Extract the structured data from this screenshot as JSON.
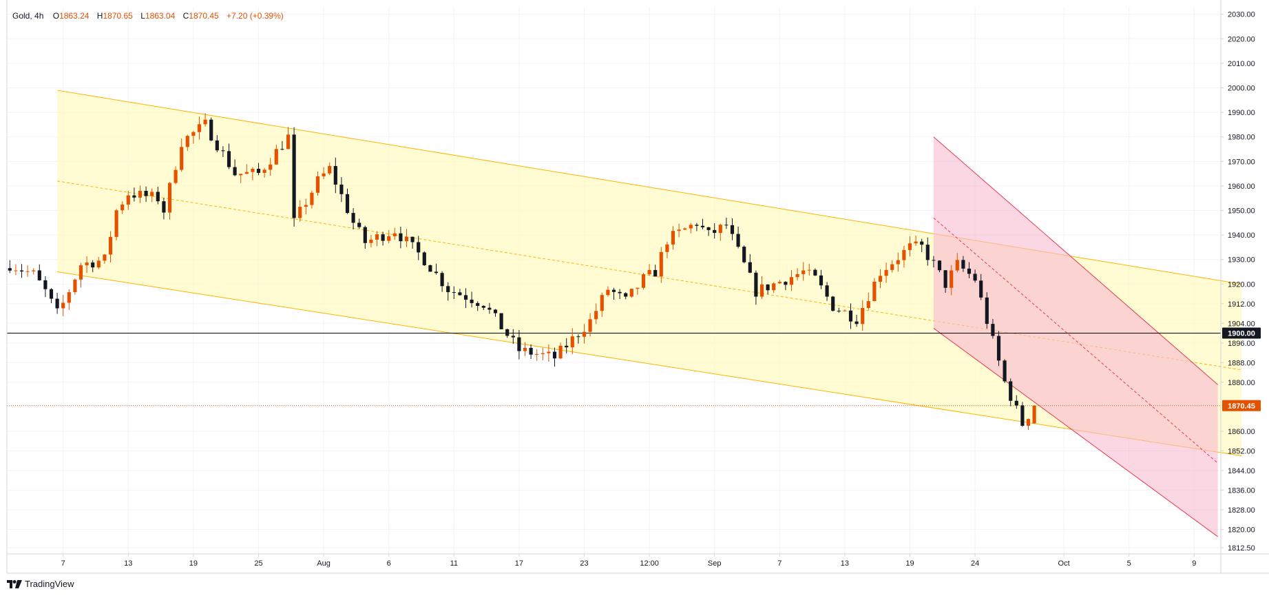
{
  "header": {
    "symbol": "Gold, 4h",
    "open_label": "O",
    "open": "1863.24",
    "high_label": "H",
    "high": "1870.65",
    "low_label": "L",
    "low": "1863.04",
    "close_label": "C",
    "close": "1870.45",
    "change": "+7.20 (+0.39%)"
  },
  "footer": {
    "brand": "TradingView",
    "logo_icon": "tradingview-logo-icon"
  },
  "colors": {
    "bull_candle": "#e65100",
    "bear_candle": "#131722",
    "channel_fill": "#fff9c4",
    "channel_line": "#ffb300",
    "down_channel_fill": "#f8bbd0",
    "down_channel_line": "#e53950",
    "price_label_bg": "#e65100",
    "level_line": "#131722"
  },
  "chart_data": {
    "type": "candlestick",
    "title": "Gold, 4h",
    "timeframe": "4h",
    "ylim": [
      1810,
      2033
    ],
    "y_ticks": [
      1812.5,
      1820.0,
      1828.0,
      1836.0,
      1844.0,
      1852.0,
      1860.0,
      1880.0,
      1888.0,
      1896.0,
      1904.0,
      1912.0,
      1920.0,
      1930.0,
      1940.0,
      1950.0,
      1960.0,
      1970.0,
      1980.0,
      1990.0,
      2000.0,
      2010.0,
      2020.0,
      2030.0
    ],
    "y_tick_labels": [
      "1812.50",
      "1820.00",
      "1828.00",
      "1836.00",
      "1844.00",
      "1852.00",
      "1860.00",
      "1880.00",
      "1888.00",
      "1896.00",
      "1904.00",
      "1912.00",
      "1920.00",
      "1930.00",
      "1940.00",
      "1950.00",
      "1960.00",
      "1970.00",
      "1980.00",
      "1990.00",
      "2000.00",
      "2010.00",
      "2020.00",
      "2030.00"
    ],
    "x_ticks": [
      "7",
      "13",
      "19",
      "25",
      "Aug",
      "6",
      "11",
      "17",
      "23",
      "12:00",
      "Sep",
      "7",
      "13",
      "19",
      "24",
      "Oct",
      "5",
      "9"
    ],
    "x_tick_bars": [
      9,
      20,
      31,
      42,
      53,
      64,
      75,
      86,
      97,
      108,
      119,
      130,
      141,
      152,
      163,
      178,
      189,
      200
    ],
    "total_bars": 205,
    "last_bar_index": 173,
    "horizontal_level": {
      "value": 1900.0,
      "label": "1900.00"
    },
    "last_price": {
      "value": 1870.45,
      "label": "1870.45"
    },
    "anchors": [
      {
        "i": 0,
        "c": 1928
      },
      {
        "i": 4,
        "c": 1924
      },
      {
        "i": 6,
        "c": 1917
      },
      {
        "i": 8,
        "c": 1908
      },
      {
        "i": 9,
        "c": 1912
      },
      {
        "i": 12,
        "c": 1928
      },
      {
        "i": 16,
        "c": 1930
      },
      {
        "i": 18,
        "c": 1950
      },
      {
        "i": 20,
        "c": 1957
      },
      {
        "i": 25,
        "c": 1955
      },
      {
        "i": 26,
        "c": 1950
      },
      {
        "i": 29,
        "c": 1978
      },
      {
        "i": 33,
        "c": 1985
      },
      {
        "i": 38,
        "c": 1965
      },
      {
        "i": 42,
        "c": 1965
      },
      {
        "i": 47,
        "c": 1980
      },
      {
        "i": 48,
        "c": 1945
      },
      {
        "i": 52,
        "c": 1962
      },
      {
        "i": 54,
        "c": 1967
      },
      {
        "i": 58,
        "c": 1945
      },
      {
        "i": 60,
        "c": 1937
      },
      {
        "i": 65,
        "c": 1942
      },
      {
        "i": 70,
        "c": 1930
      },
      {
        "i": 74,
        "c": 1918
      },
      {
        "i": 80,
        "c": 1912
      },
      {
        "i": 86,
        "c": 1893
      },
      {
        "i": 92,
        "c": 1890
      },
      {
        "i": 98,
        "c": 1905
      },
      {
        "i": 101,
        "c": 1918
      },
      {
        "i": 104,
        "c": 1913
      },
      {
        "i": 107,
        "c": 1922
      },
      {
        "i": 109,
        "c": 1925
      },
      {
        "i": 111,
        "c": 1938
      },
      {
        "i": 116,
        "c": 1945
      },
      {
        "i": 118,
        "c": 1940
      },
      {
        "i": 121,
        "c": 1944
      },
      {
        "i": 126,
        "c": 1917
      },
      {
        "i": 129,
        "c": 1920
      },
      {
        "i": 134,
        "c": 1925
      },
      {
        "i": 136,
        "c": 1922
      },
      {
        "i": 139,
        "c": 1911
      },
      {
        "i": 143,
        "c": 1906
      },
      {
        "i": 147,
        "c": 1925
      },
      {
        "i": 152,
        "c": 1935
      },
      {
        "i": 154,
        "c": 1935
      },
      {
        "i": 156,
        "c": 1928
      },
      {
        "i": 158,
        "c": 1920
      },
      {
        "i": 160,
        "c": 1928
      },
      {
        "i": 163,
        "c": 1922
      },
      {
        "i": 165,
        "c": 1905
      },
      {
        "i": 168,
        "c": 1880
      },
      {
        "i": 171,
        "c": 1863
      },
      {
        "i": 173,
        "c": 1870.45
      }
    ],
    "channels": [
      {
        "name": "ascending-channel",
        "upper": [
          [
            8,
            1999
          ],
          [
            208,
            1920
          ]
        ],
        "lower": [
          [
            8,
            1925
          ],
          [
            208,
            1850
          ]
        ],
        "mid": [
          [
            8,
            1962
          ],
          [
            208,
            1885
          ]
        ]
      },
      {
        "name": "down-channel",
        "upper": [
          [
            156,
            1980
          ],
          [
            204,
            1879
          ]
        ],
        "lower": [
          [
            156,
            1902
          ],
          [
            204,
            1817
          ]
        ],
        "mid": [
          [
            156,
            1947
          ],
          [
            204,
            1847
          ]
        ]
      }
    ]
  }
}
